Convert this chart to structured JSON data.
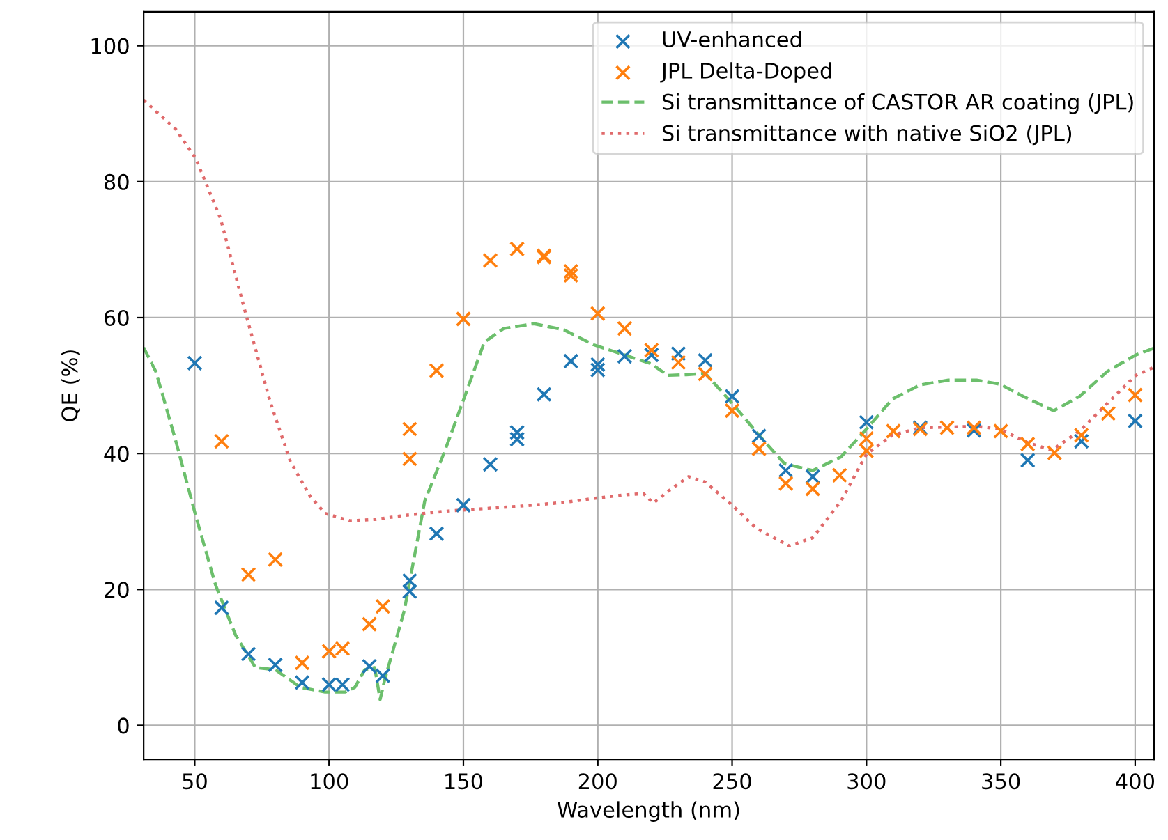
{
  "chart_data": {
    "type": "scatter",
    "xlabel": "Wavelength (nm)",
    "ylabel": "QE (%)",
    "xlim": [
      31,
      407
    ],
    "ylim": [
      -5,
      105
    ],
    "xticks": [
      50,
      100,
      150,
      200,
      250,
      300,
      350,
      400
    ],
    "yticks": [
      0,
      20,
      40,
      60,
      80,
      100
    ],
    "grid": true,
    "legend": "top right",
    "series": [
      {
        "name": "UV-enhanced",
        "marker": "cross",
        "color": "#1f77b4",
        "x": [
          50,
          60,
          70,
          80,
          90,
          100,
          105,
          115,
          120,
          130,
          130,
          140,
          150,
          160,
          170,
          170,
          180,
          190,
          200,
          200,
          210,
          220,
          230,
          240,
          250,
          260,
          270,
          280,
          300,
          320,
          340,
          360,
          380,
          400
        ],
        "values": [
          53.3,
          17.3,
          10.5,
          8.9,
          6.3,
          6.0,
          6.0,
          8.7,
          7.3,
          21.3,
          19.7,
          28.2,
          32.4,
          38.4,
          43.1,
          42.1,
          48.7,
          53.6,
          53.1,
          52.3,
          54.3,
          54.5,
          54.7,
          53.7,
          48.4,
          42.6,
          37.5,
          36.6,
          44.6,
          43.8,
          43.4,
          39.0,
          41.8,
          44.8
        ]
      },
      {
        "name": "JPL Delta-Doped",
        "marker": "cross",
        "color": "#ff7f0e",
        "x": [
          60,
          70,
          80,
          90,
          100,
          105,
          115,
          120,
          130,
          130,
          140,
          150,
          160,
          170,
          180,
          180,
          190,
          190,
          200,
          210,
          220,
          230,
          240,
          250,
          260,
          270,
          280,
          290,
          300,
          300,
          310,
          320,
          330,
          340,
          350,
          360,
          370,
          380,
          390,
          400
        ],
        "values": [
          41.8,
          22.2,
          24.4,
          9.2,
          10.9,
          11.3,
          14.9,
          17.5,
          43.6,
          39.2,
          52.2,
          59.8,
          68.4,
          70.1,
          69.1,
          68.9,
          66.8,
          66.2,
          60.6,
          58.4,
          55.2,
          53.4,
          51.7,
          46.3,
          40.7,
          35.6,
          34.8,
          36.8,
          42.2,
          40.4,
          43.3,
          43.6,
          43.8,
          43.8,
          43.3,
          41.4,
          40.1,
          42.7,
          45.9,
          48.6
        ]
      },
      {
        "name": "Si transmittance of CASTOR AR coating (JPL)",
        "type": "line",
        "line_style": "dashed",
        "color": "#6cbf6c",
        "x": [
          31,
          35.6,
          43,
          50.4,
          57.8,
          65.2,
          72.6,
          80,
          89.3,
          98.5,
          106,
          109.6,
          113.3,
          117,
          119,
          120.7,
          128,
          135.6,
          143,
          150.4,
          157.8,
          165,
          176.3,
          187.4,
          198.5,
          210,
          219.9,
          226,
          233,
          240,
          250,
          260,
          269.5,
          280,
          290.5,
          300,
          309.6,
          320,
          330.5,
          341,
          349.7,
          358.4,
          369.7,
          379.3,
          389.7,
          400.2,
          407
        ],
        "values": [
          55.6,
          52,
          41.8,
          30.8,
          20.6,
          13.3,
          8.5,
          8.2,
          5.6,
          4.9,
          4.9,
          5.6,
          8.2,
          8.5,
          3.8,
          6.7,
          16.9,
          33,
          40.3,
          48.3,
          56.4,
          58.4,
          59.1,
          58.2,
          56,
          54.5,
          53.2,
          51.5,
          51.6,
          51.8,
          47.4,
          42.7,
          38.5,
          37.5,
          39.5,
          43.6,
          48,
          50.1,
          50.8,
          50.8,
          50.2,
          48.4,
          46.3,
          48.4,
          52.1,
          54.5,
          55.5
        ]
      },
      {
        "name": "Si transmittance with native SiO2 (JPL)",
        "type": "line",
        "line_style": "dotted",
        "color": "#e06a6b",
        "x": [
          31,
          43,
          50.4,
          59.6,
          68.9,
          78.1,
          85.6,
          93,
          98.5,
          107.8,
          117,
          128,
          143,
          157.8,
          172.6,
          187.4,
          198.5,
          209.6,
          217,
          220.7,
          226,
          233.8,
          240,
          250,
          259,
          271.3,
          280,
          290.5,
          300,
          309.6,
          320,
          341,
          349.7,
          360,
          369,
          379.3,
          389.7,
          400.2,
          407
        ],
        "values": [
          92,
          87.7,
          83.4,
          74.6,
          60.7,
          47.6,
          38.8,
          33.7,
          31.2,
          30.1,
          30.3,
          30.9,
          31.5,
          31.9,
          32.3,
          32.8,
          33.4,
          33.9,
          34.1,
          32.7,
          34.4,
          36.6,
          35.8,
          32.4,
          29,
          26.4,
          27.6,
          33,
          39.9,
          42.7,
          43.8,
          44,
          43.6,
          41.6,
          40.5,
          43.3,
          47.4,
          51.5,
          52.7
        ]
      }
    ]
  }
}
